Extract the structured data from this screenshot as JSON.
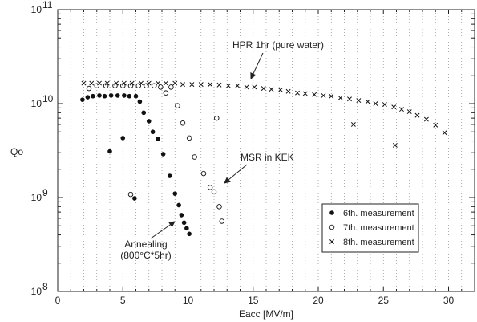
{
  "chart_data": {
    "type": "scatter",
    "xlabel": "Eacc [MV/m]",
    "ylabel": "Qo",
    "xlim": [
      0,
      32
    ],
    "ylim": [
      100000000,
      100000000000
    ],
    "yscale": "log",
    "x_ticks": [
      "0",
      "5",
      "10",
      "15",
      "20",
      "25",
      "30"
    ],
    "y_ticks": [
      {
        "base": "10",
        "exp": "8",
        "value": 100000000
      },
      {
        "base": "10",
        "exp": "9",
        "value": 1000000000
      },
      {
        "base": "10",
        "exp": "10",
        "value": 10000000000
      },
      {
        "base": "10",
        "exp": "11",
        "value": 100000000000
      }
    ],
    "grid": "dotted vertical",
    "legend_position": "lower-right",
    "series": [
      {
        "name": "6th. measurement",
        "marker": "filled-circle",
        "points": [
          [
            1.9,
            11000000000.0
          ],
          [
            2.3,
            11700000000.0
          ],
          [
            2.7,
            12000000000.0
          ],
          [
            3.2,
            12200000000.0
          ],
          [
            3.6,
            12000000000.0
          ],
          [
            4.1,
            12200000000.0
          ],
          [
            4.6,
            12200000000.0
          ],
          [
            5.1,
            12200000000.0
          ],
          [
            5.5,
            12000000000.0
          ],
          [
            6.0,
            12000000000.0
          ],
          [
            6.3,
            10500000000.0
          ],
          [
            6.6,
            8000000000.0
          ],
          [
            7.0,
            6500000000.0
          ],
          [
            7.3,
            5000000000.0
          ],
          [
            7.7,
            4200000000.0
          ],
          [
            8.1,
            2900000000.0
          ],
          [
            8.6,
            1700000000.0
          ],
          [
            9.0,
            1100000000.0
          ],
          [
            9.3,
            830000000.0
          ],
          [
            9.5,
            650000000.0
          ],
          [
            9.7,
            540000000.0
          ],
          [
            9.9,
            470000000.0
          ],
          [
            10.1,
            410000000.0
          ],
          [
            4.0,
            3100000000.0
          ],
          [
            5.0,
            4300000000.0
          ],
          [
            5.9,
            980000000.0
          ]
        ]
      },
      {
        "name": "7th. measurement",
        "marker": "open-circle",
        "points": [
          [
            2.4,
            14500000000.0
          ],
          [
            3.0,
            15500000000.0
          ],
          [
            3.7,
            15500000000.0
          ],
          [
            4.4,
            15500000000.0
          ],
          [
            5.0,
            15500000000.0
          ],
          [
            5.6,
            15500000000.0
          ],
          [
            6.2,
            15500000000.0
          ],
          [
            6.8,
            15500000000.0
          ],
          [
            7.4,
            15500000000.0
          ],
          [
            7.9,
            15000000000.0
          ],
          [
            8.3,
            13000000000.0
          ],
          [
            8.7,
            15000000000.0
          ],
          [
            9.2,
            9500000000.0
          ],
          [
            9.6,
            6200000000.0
          ],
          [
            10.1,
            4300000000.0
          ],
          [
            10.5,
            2700000000.0
          ],
          [
            11.2,
            1800000000.0
          ],
          [
            11.7,
            1280000000.0
          ],
          [
            12.2,
            7000000000.0
          ],
          [
            12.4,
            800000000.0
          ],
          [
            12.6,
            560000000.0
          ],
          [
            12.0,
            1150000000.0
          ],
          [
            5.6,
            1080000000.0
          ]
        ]
      },
      {
        "name": "8th. measurement",
        "marker": "x",
        "points": [
          [
            2.0,
            16500000000.0
          ],
          [
            2.6,
            16500000000.0
          ],
          [
            3.2,
            16500000000.0
          ],
          [
            3.8,
            16500000000.0
          ],
          [
            4.5,
            16500000000.0
          ],
          [
            5.1,
            16500000000.0
          ],
          [
            5.7,
            16500000000.0
          ],
          [
            6.4,
            16500000000.0
          ],
          [
            7.0,
            16500000000.0
          ],
          [
            7.7,
            16500000000.0
          ],
          [
            8.3,
            16500000000.0
          ],
          [
            9.0,
            16500000000.0
          ],
          [
            9.6,
            16000000000.0
          ],
          [
            10.3,
            16000000000.0
          ],
          [
            11.0,
            16000000000.0
          ],
          [
            11.7,
            16000000000.0
          ],
          [
            12.4,
            15800000000.0
          ],
          [
            13.1,
            15500000000.0
          ],
          [
            13.8,
            15500000000.0
          ],
          [
            14.5,
            15000000000.0
          ],
          [
            15.1,
            15000000000.0
          ],
          [
            15.8,
            14500000000.0
          ],
          [
            16.4,
            14200000000.0
          ],
          [
            17.1,
            14000000000.0
          ],
          [
            17.7,
            13500000000.0
          ],
          [
            18.4,
            13000000000.0
          ],
          [
            19.0,
            12800000000.0
          ],
          [
            19.7,
            12500000000.0
          ],
          [
            20.4,
            12200000000.0
          ],
          [
            21.0,
            12000000000.0
          ],
          [
            21.7,
            11500000000.0
          ],
          [
            22.4,
            11200000000.0
          ],
          [
            23.1,
            10800000000.0
          ],
          [
            23.8,
            10500000000.0
          ],
          [
            24.4,
            10000000000.0
          ],
          [
            25.1,
            9800000000.0
          ],
          [
            25.8,
            9200000000.0
          ],
          [
            26.4,
            8700000000.0
          ],
          [
            27.0,
            8200000000.0
          ],
          [
            27.6,
            7500000000.0
          ],
          [
            28.3,
            6800000000.0
          ],
          [
            29.0,
            5900000000.0
          ],
          [
            29.7,
            4900000000.0
          ],
          [
            22.7,
            6000000000.0
          ],
          [
            25.9,
            3600000000.0
          ]
        ]
      }
    ],
    "annotations": [
      {
        "text": "HPR 1hr (pure water)",
        "target": [
          15.0,
          15500000000.0
        ]
      },
      {
        "text": "MSR in KEK",
        "target": [
          12.2,
          1300000000.0
        ]
      },
      {
        "text": "Annealing",
        "text2": "(800°C*5hr)",
        "target": [
          9.3,
          560000000.0
        ]
      }
    ]
  }
}
